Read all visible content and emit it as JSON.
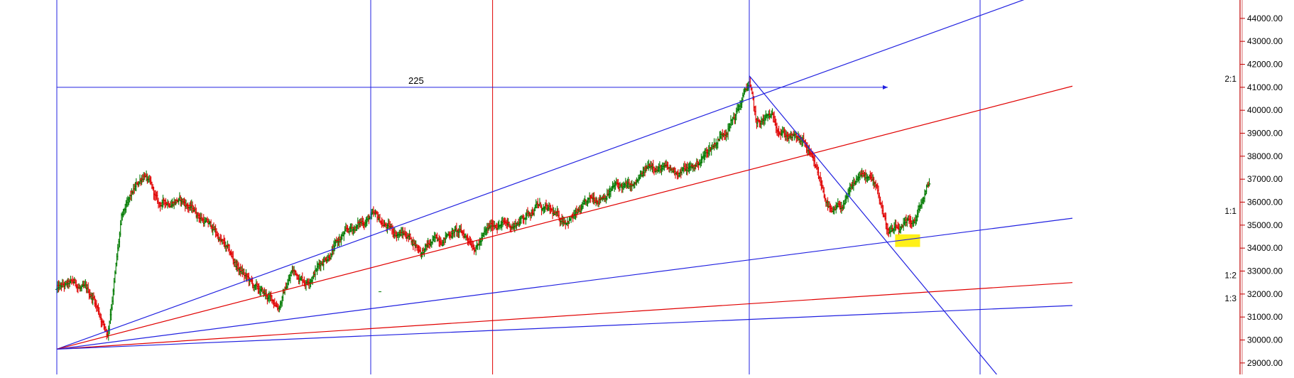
{
  "chart_data": {
    "type": "ohlc",
    "title": "",
    "xlabel": "",
    "ylabel": "",
    "ylim": [
      28500,
      44800
    ],
    "y_ticks": [
      "29000.00",
      "30000.00",
      "31000.00",
      "32000.00",
      "33000.00",
      "34000.00",
      "35000.00",
      "36000.00",
      "37000.00",
      "38000.00",
      "39000.00",
      "40000.00",
      "41000.00",
      "42000.00",
      "43000.00",
      "44000.00"
    ],
    "y_tick_values": [
      29000,
      30000,
      31000,
      32000,
      33000,
      34000,
      35000,
      36000,
      37000,
      38000,
      39000,
      40000,
      41000,
      42000,
      43000,
      44000
    ],
    "bar_count": 510,
    "grid": false,
    "colors": {
      "up": "#007a00",
      "down": "#e00000",
      "blue_line": "#2020e0",
      "red_line": "#e00000",
      "highlight": "#ffee00"
    },
    "price_path": [
      [
        0,
        32200
      ],
      [
        20,
        32400
      ],
      [
        40,
        31800
      ],
      [
        55,
        30300
      ],
      [
        62,
        32600
      ],
      [
        70,
        35200
      ],
      [
        80,
        36100
      ],
      [
        95,
        37300
      ],
      [
        110,
        35800
      ],
      [
        130,
        36200
      ],
      [
        150,
        35600
      ],
      [
        170,
        34800
      ],
      [
        195,
        33200
      ],
      [
        215,
        32200
      ],
      [
        240,
        31500
      ],
      [
        255,
        33000
      ],
      [
        270,
        32600
      ],
      [
        290,
        33600
      ],
      [
        310,
        34500
      ],
      [
        340,
        35400
      ],
      [
        365,
        34700
      ],
      [
        380,
        34600
      ],
      [
        395,
        33900
      ],
      [
        410,
        34300
      ],
      [
        430,
        34800
      ],
      [
        455,
        34200
      ],
      [
        475,
        35100
      ],
      [
        495,
        35000
      ],
      [
        520,
        35900
      ],
      [
        545,
        35200
      ],
      [
        565,
        35500
      ],
      [
        585,
        36200
      ],
      [
        605,
        36700
      ],
      [
        625,
        36600
      ],
      [
        645,
        37700
      ],
      [
        665,
        37300
      ],
      [
        690,
        37500
      ],
      [
        715,
        38700
      ],
      [
        735,
        39800
      ],
      [
        750,
        41200
      ],
      [
        758,
        39300
      ],
      [
        772,
        39700
      ],
      [
        790,
        39000
      ],
      [
        810,
        38500
      ],
      [
        825,
        37000
      ],
      [
        840,
        35400
      ],
      [
        855,
        36000
      ],
      [
        870,
        37200
      ],
      [
        888,
        36700
      ],
      [
        900,
        34800
      ],
      [
        915,
        34700
      ],
      [
        930,
        35200
      ],
      [
        945,
        36800
      ]
    ],
    "highlight_zone": {
      "x0": 908,
      "x1": 935,
      "y0": 34600,
      "y1": 34050
    },
    "vertical_lines": [
      {
        "x": 0,
        "color": "blue"
      },
      {
        "x": 340,
        "color": "blue"
      },
      {
        "x": 472,
        "color": "red"
      },
      {
        "x": 750,
        "color": "blue"
      },
      {
        "x": 1000,
        "color": "blue"
      }
    ],
    "horizontal_segment": {
      "x0": 0,
      "x1": 900,
      "y": 41000,
      "label": "225"
    },
    "fan_origin": [
      0,
      29600
    ],
    "fan_lines": [
      {
        "to": [
          1050,
          44850
        ],
        "color": "blue",
        "label": ""
      },
      {
        "to": [
          1100,
          41050
        ],
        "color": "red",
        "label": "2:1"
      },
      {
        "to": [
          1100,
          35300
        ],
        "color": "blue",
        "label": "1:1"
      },
      {
        "to": [
          1100,
          32500
        ],
        "color": "red",
        "label": "1:2"
      },
      {
        "to": [
          1100,
          31500
        ],
        "color": "blue",
        "label": "1:3"
      }
    ],
    "down_trendline": {
      "from": [
        750,
        41500
      ],
      "to": [
        1018,
        28500
      ],
      "color": "blue"
    },
    "small_mark": {
      "x": 350,
      "y": 32100
    }
  }
}
